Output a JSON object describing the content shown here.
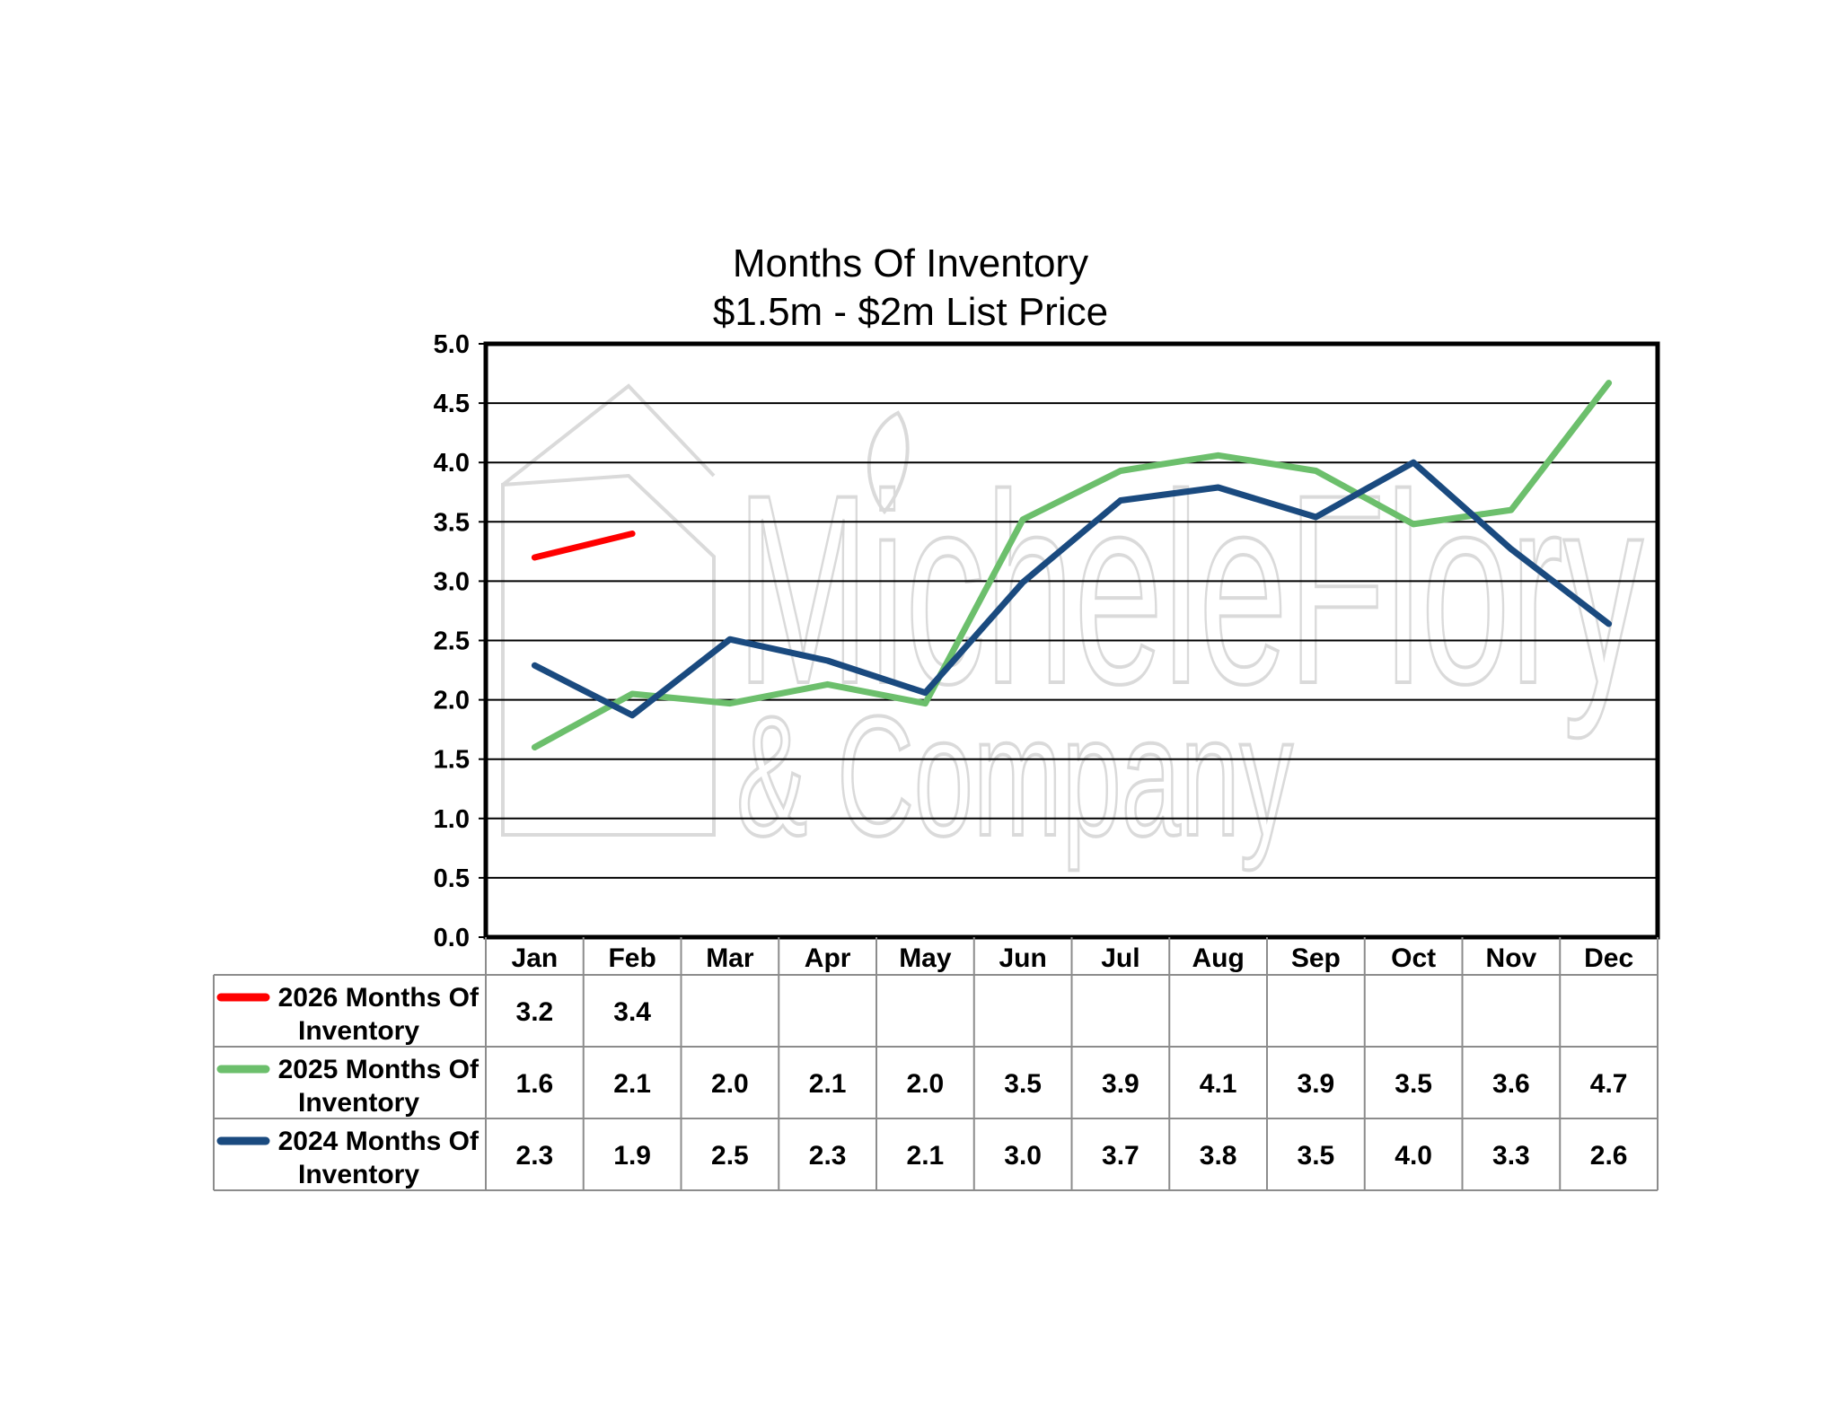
{
  "chart_data": {
    "type": "line",
    "title": "Months Of Inventory",
    "subtitle": "$1.5m - $2m List Price",
    "categories": [
      "Jan",
      "Feb",
      "Mar",
      "Apr",
      "May",
      "Jun",
      "Jul",
      "Aug",
      "Sep",
      "Oct",
      "Nov",
      "Dec"
    ],
    "ylim": [
      0,
      5
    ],
    "yticks": [
      "0.0",
      "0.5",
      "1.0",
      "1.5",
      "2.0",
      "2.5",
      "3.0",
      "3.5",
      "4.0",
      "4.5",
      "5.0"
    ],
    "grid": true,
    "legend_placement": "data-table-left",
    "series": [
      {
        "name": "2026 Months Of Inventory",
        "color": "#ff0000",
        "values": [
          3.2,
          3.4,
          null,
          null,
          null,
          null,
          null,
          null,
          null,
          null,
          null,
          null
        ],
        "labels": [
          "3.2",
          "3.4",
          "",
          "",
          "",
          "",
          "",
          "",
          "",
          "",
          "",
          ""
        ]
      },
      {
        "name": "2025 Months Of Inventory",
        "color": "#6cbf6c",
        "values": [
          1.6,
          2.05,
          1.97,
          2.13,
          1.97,
          3.52,
          3.93,
          4.06,
          3.93,
          3.48,
          3.6,
          4.67
        ],
        "labels": [
          "1.6",
          "2.1",
          "2.0",
          "2.1",
          "2.0",
          "3.5",
          "3.9",
          "4.1",
          "3.9",
          "3.5",
          "3.6",
          "4.7"
        ]
      },
      {
        "name": "2024 Months Of Inventory",
        "color": "#1a4a7f",
        "values": [
          2.29,
          1.87,
          2.51,
          2.33,
          2.06,
          2.99,
          3.68,
          3.79,
          3.54,
          4.0,
          3.27,
          2.64
        ],
        "labels": [
          "2.3",
          "1.9",
          "2.5",
          "2.3",
          "2.1",
          "3.0",
          "3.7",
          "3.8",
          "3.5",
          "4.0",
          "3.3",
          "2.6"
        ]
      }
    ],
    "watermark": {
      "line1": "MicheleFlory",
      "line2": "& Company"
    }
  }
}
